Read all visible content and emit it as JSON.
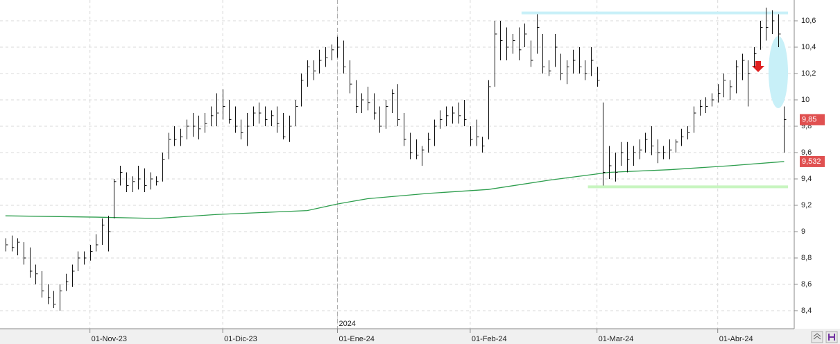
{
  "chart_data": {
    "type": "ohlc",
    "xlim": [
      -0.9,
      130.1
    ],
    "ylim": [
      8.263,
      10.758
    ],
    "yticks": [
      {
        "value": 8.4,
        "label": "8,4"
      },
      {
        "value": 8.6,
        "label": "8,6"
      },
      {
        "value": 8.8,
        "label": "8,8"
      },
      9,
      {
        "value": 9.2,
        "label": "9,2"
      },
      {
        "value": 9.4,
        "label": "9,4"
      },
      {
        "value": 9.6,
        "label": "9,6"
      },
      {
        "value": 9.8,
        "label": "9,8"
      },
      10,
      {
        "value": 10.2,
        "label": "10,2"
      },
      {
        "value": 10.4,
        "label": "10,4"
      },
      {
        "value": 10.6,
        "label": "10,6"
      }
    ],
    "xticks": [
      {
        "value": 14,
        "label": "01-Nov-23"
      },
      {
        "value": 36,
        "label": "01-Dic-23"
      },
      {
        "value": 55,
        "label": "01-Ene-24"
      },
      {
        "value": 77,
        "label": "01-Feb-24"
      },
      {
        "value": 98,
        "label": "01-Mar-24"
      },
      {
        "value": 118,
        "label": "01-Abr-24"
      }
    ],
    "year_marks": [
      {
        "value": 55,
        "label": "2024"
      }
    ],
    "grid": true,
    "color": "#111111",
    "high": [
      8.95,
      8.97,
      8.95,
      8.92,
      8.88,
      8.75,
      8.7,
      8.6,
      8.55,
      8.6,
      8.68,
      8.75,
      8.85,
      8.85,
      8.9,
      8.98,
      9.1,
      9.12,
      9.4,
      9.5,
      9.45,
      9.42,
      9.5,
      9.48,
      9.45,
      9.42,
      9.6,
      9.75,
      9.8,
      9.78,
      9.85,
      9.9,
      9.88,
      9.9,
      9.95,
      10.05,
      10.08,
      10.0,
      9.95,
      9.85,
      9.9,
      9.95,
      9.98,
      9.95,
      9.92,
      9.95,
      9.9,
      9.88,
      10.0,
      10.2,
      10.3,
      10.3,
      10.38,
      10.4,
      10.42,
      10.48,
      10.45,
      10.3,
      10.15,
      10.05,
      10.1,
      10.05,
      9.95,
      10.0,
      10.08,
      10.12,
      9.9,
      9.75,
      9.7,
      9.65,
      9.75,
      9.85,
      9.92,
      9.95,
      9.95,
      9.98,
      10.0,
      9.8,
      9.85,
      9.72,
      10.15,
      10.6,
      10.6,
      10.55,
      10.5,
      10.55,
      10.58,
      10.45,
      10.65,
      10.5,
      10.3,
      10.5,
      10.35,
      10.3,
      10.38,
      10.4,
      10.3,
      10.4,
      10.25,
      9.98,
      9.65,
      9.6,
      9.68,
      9.68,
      9.65,
      9.7,
      9.75,
      9.8,
      9.7,
      9.65,
      9.7,
      9.7,
      9.78,
      9.8,
      9.95,
      10.0,
      10.02,
      10.05,
      10.12,
      10.2,
      10.15,
      10.3,
      10.35,
      10.3,
      10.4,
      10.6,
      10.7,
      10.68,
      10.65,
      9.95
    ],
    "low": [
      8.85,
      8.85,
      8.82,
      8.75,
      8.65,
      8.6,
      8.5,
      8.45,
      8.42,
      8.4,
      8.55,
      8.58,
      8.7,
      8.75,
      8.78,
      8.85,
      8.9,
      8.85,
      9.1,
      9.35,
      9.3,
      9.3,
      9.32,
      9.3,
      9.32,
      9.35,
      9.38,
      9.55,
      9.65,
      9.65,
      9.7,
      9.72,
      9.7,
      9.75,
      9.8,
      9.8,
      9.85,
      9.82,
      9.75,
      9.7,
      9.65,
      9.8,
      9.82,
      9.8,
      9.8,
      9.75,
      9.7,
      9.68,
      9.8,
      9.95,
      10.1,
      10.15,
      10.2,
      10.25,
      10.3,
      10.32,
      10.2,
      10.05,
      9.9,
      9.9,
      9.92,
      9.85,
      9.75,
      9.78,
      9.9,
      9.8,
      9.65,
      9.55,
      9.55,
      9.5,
      9.6,
      9.65,
      9.78,
      9.8,
      9.82,
      9.82,
      9.8,
      9.65,
      9.65,
      9.6,
      9.7,
      10.1,
      10.3,
      10.3,
      10.35,
      10.3,
      10.4,
      10.25,
      10.35,
      10.2,
      10.18,
      10.25,
      10.15,
      10.12,
      10.2,
      10.2,
      10.15,
      10.18,
      10.1,
      9.35,
      9.4,
      9.38,
      9.5,
      9.45,
      9.5,
      9.55,
      9.6,
      9.58,
      9.52,
      9.55,
      9.55,
      9.6,
      9.65,
      9.7,
      9.75,
      9.88,
      9.9,
      9.95,
      9.98,
      10.02,
      10.0,
      10.05,
      10.15,
      9.95,
      10.25,
      10.38,
      10.45,
      10.5,
      10.4,
      9.6
    ],
    "close": [
      8.9,
      8.88,
      8.92,
      8.8,
      8.7,
      8.68,
      8.55,
      8.5,
      8.45,
      8.55,
      8.62,
      8.7,
      8.8,
      8.8,
      8.85,
      8.9,
      9.05,
      9.0,
      9.38,
      9.45,
      9.35,
      9.38,
      9.4,
      9.35,
      9.4,
      9.38,
      9.55,
      9.7,
      9.7,
      9.72,
      9.8,
      9.8,
      9.78,
      9.82,
      9.88,
      9.9,
      9.95,
      9.85,
      9.8,
      9.75,
      9.8,
      9.9,
      9.9,
      9.85,
      9.88,
      9.82,
      9.72,
      9.8,
      9.95,
      10.15,
      10.25,
      10.22,
      10.3,
      10.32,
      10.38,
      10.4,
      10.25,
      10.12,
      9.95,
      10.0,
      9.98,
      9.9,
      9.8,
      9.95,
      10.05,
      9.85,
      9.7,
      9.6,
      9.58,
      9.62,
      9.7,
      9.8,
      9.85,
      9.88,
      9.9,
      9.88,
      9.85,
      9.7,
      9.72,
      9.65,
      10.1,
      10.5,
      10.45,
      10.4,
      10.45,
      10.38,
      10.5,
      10.3,
      10.55,
      10.25,
      10.22,
      10.4,
      10.2,
      10.25,
      10.3,
      10.25,
      10.2,
      10.3,
      10.15,
      9.45,
      9.5,
      9.45,
      9.6,
      9.55,
      9.6,
      9.62,
      9.7,
      9.65,
      9.6,
      9.6,
      9.62,
      9.68,
      9.72,
      9.75,
      9.9,
      9.95,
      9.95,
      10.0,
      10.05,
      10.15,
      10.1,
      10.25,
      10.3,
      10.2,
      10.35,
      10.55,
      10.55,
      10.6,
      10.5,
      9.85
    ],
    "moving_average": {
      "color": "#2e9e4e",
      "x": [
        0,
        15,
        25,
        35,
        45,
        50,
        55,
        60,
        70,
        80,
        90,
        100,
        110,
        120,
        129
      ],
      "values": [
        9.12,
        9.11,
        9.1,
        9.13,
        9.15,
        9.16,
        9.21,
        9.25,
        9.29,
        9.32,
        9.39,
        9.45,
        9.47,
        9.5,
        9.532
      ]
    },
    "levels": [
      {
        "value": 10.66,
        "from": 85.5,
        "color": "#c8f0f8"
      },
      {
        "value": 9.34,
        "from": 96.5,
        "color": "#c8f5c0"
      }
    ],
    "price_labels": [
      {
        "value": 9.85,
        "label": "9,85",
        "color": "#e05050"
      },
      {
        "value": 9.532,
        "label": "9,532",
        "color": "#e05050"
      }
    ]
  }
}
